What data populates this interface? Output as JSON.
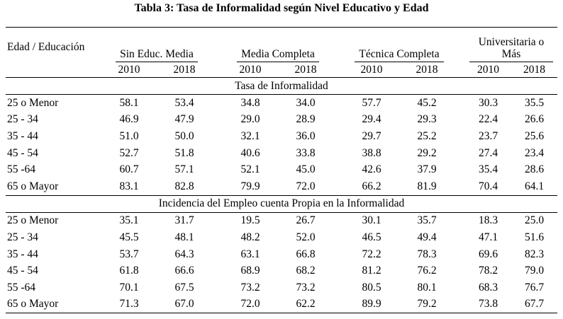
{
  "title": "Tabla 3: Tasa de Informalidad según Nivel Educativo y Edad",
  "header": {
    "row_label": "Edad / Educación",
    "groups": [
      {
        "label": "Sin Educ. Media",
        "years": [
          "2010",
          "2018"
        ]
      },
      {
        "label": "Media Completa",
        "years": [
          "2010",
          "2018"
        ]
      },
      {
        "label": "Técnica Completa",
        "years": [
          "2010",
          "2018"
        ]
      },
      {
        "label": "Universitaria o Más",
        "years": [
          "2010",
          "2018"
        ]
      }
    ]
  },
  "sections": [
    {
      "title": "Tasa de Informalidad",
      "rows": [
        {
          "label": "25 o Menor",
          "values": [
            "58.1",
            "53.4",
            "34.8",
            "34.0",
            "57.7",
            "45.2",
            "30.3",
            "35.5"
          ]
        },
        {
          "label": "25 - 34",
          "values": [
            "46.9",
            "47.9",
            "29.0",
            "28.9",
            "29.4",
            "29.3",
            "22.4",
            "26.6"
          ]
        },
        {
          "label": "35 - 44",
          "values": [
            "51.0",
            "50.0",
            "32.1",
            "36.0",
            "29.7",
            "25.2",
            "23.7",
            "25.6"
          ]
        },
        {
          "label": "45 - 54",
          "values": [
            "52.7",
            "51.8",
            "40.6",
            "33.8",
            "38.8",
            "29.2",
            "27.4",
            "23.4"
          ]
        },
        {
          "label": "55 -64",
          "values": [
            "60.7",
            "57.1",
            "52.1",
            "45.0",
            "42.6",
            "37.9",
            "35.4",
            "28.6"
          ]
        },
        {
          "label": "65 o Mayor",
          "values": [
            "83.1",
            "82.8",
            "79.9",
            "72.0",
            "66.2",
            "81.9",
            "70.4",
            "64.1"
          ]
        }
      ]
    },
    {
      "title": "Incidencia del Empleo cuenta Propia en la Informalidad",
      "rows": [
        {
          "label": "25 o Menor",
          "values": [
            "35.1",
            "31.7",
            "19.5",
            "26.7",
            "30.1",
            "35.7",
            "18.3",
            "25.0"
          ]
        },
        {
          "label": "25 - 34",
          "values": [
            "45.5",
            "48.1",
            "48.2",
            "52.0",
            "46.5",
            "49.4",
            "47.1",
            "51.6"
          ]
        },
        {
          "label": "35 - 44",
          "values": [
            "53.7",
            "64.3",
            "63.1",
            "66.8",
            "72.2",
            "78.3",
            "69.6",
            "82.3"
          ]
        },
        {
          "label": "45 - 54",
          "values": [
            "61.8",
            "66.6",
            "68.9",
            "68.2",
            "81.2",
            "76.2",
            "78.2",
            "79.0"
          ]
        },
        {
          "label": "55 -64",
          "values": [
            "70.1",
            "67.5",
            "73.2",
            "73.2",
            "80.5",
            "80.1",
            "68.3",
            "76.7"
          ]
        },
        {
          "label": "65 o Mayor",
          "values": [
            "71.3",
            "67.0",
            "72.0",
            "62.2",
            "89.9",
            "79.2",
            "73.8",
            "67.7"
          ]
        }
      ]
    }
  ]
}
